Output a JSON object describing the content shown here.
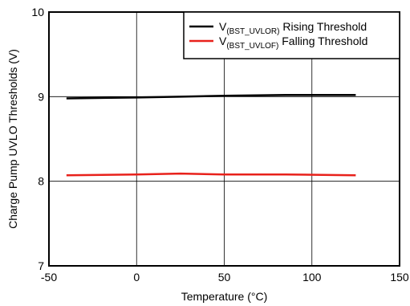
{
  "chart_data": {
    "type": "line",
    "xlabel": "Temperature (°C)",
    "ylabel": "Charge Pump UVLO Thresholds (V)",
    "xlim": [
      -50,
      150
    ],
    "ylim": [
      7,
      10
    ],
    "xticks": [
      -50,
      0,
      50,
      100,
      150
    ],
    "yticks": [
      7,
      8,
      9,
      10
    ],
    "grid": true,
    "legend_position": "top-right",
    "series": [
      {
        "name": "V(BST_UVLOR) Rising Threshold",
        "legend_main": "V",
        "legend_sub": "(BST_UVLOR)",
        "legend_rest": " Rising Threshold",
        "color": "#000000",
        "x": [
          -40,
          0,
          25,
          50,
          85,
          125
        ],
        "y": [
          8.98,
          8.99,
          9.0,
          9.01,
          9.02,
          9.02
        ]
      },
      {
        "name": "V(BST_UVLOF) Falling Threshold",
        "legend_main": "V",
        "legend_sub": "(BST_UVLOF)",
        "legend_rest": " Falling Threshold",
        "color": "#e8211b",
        "x": [
          -40,
          0,
          25,
          50,
          85,
          125
        ],
        "y": [
          8.07,
          8.08,
          8.09,
          8.08,
          8.08,
          8.07
        ]
      }
    ]
  }
}
